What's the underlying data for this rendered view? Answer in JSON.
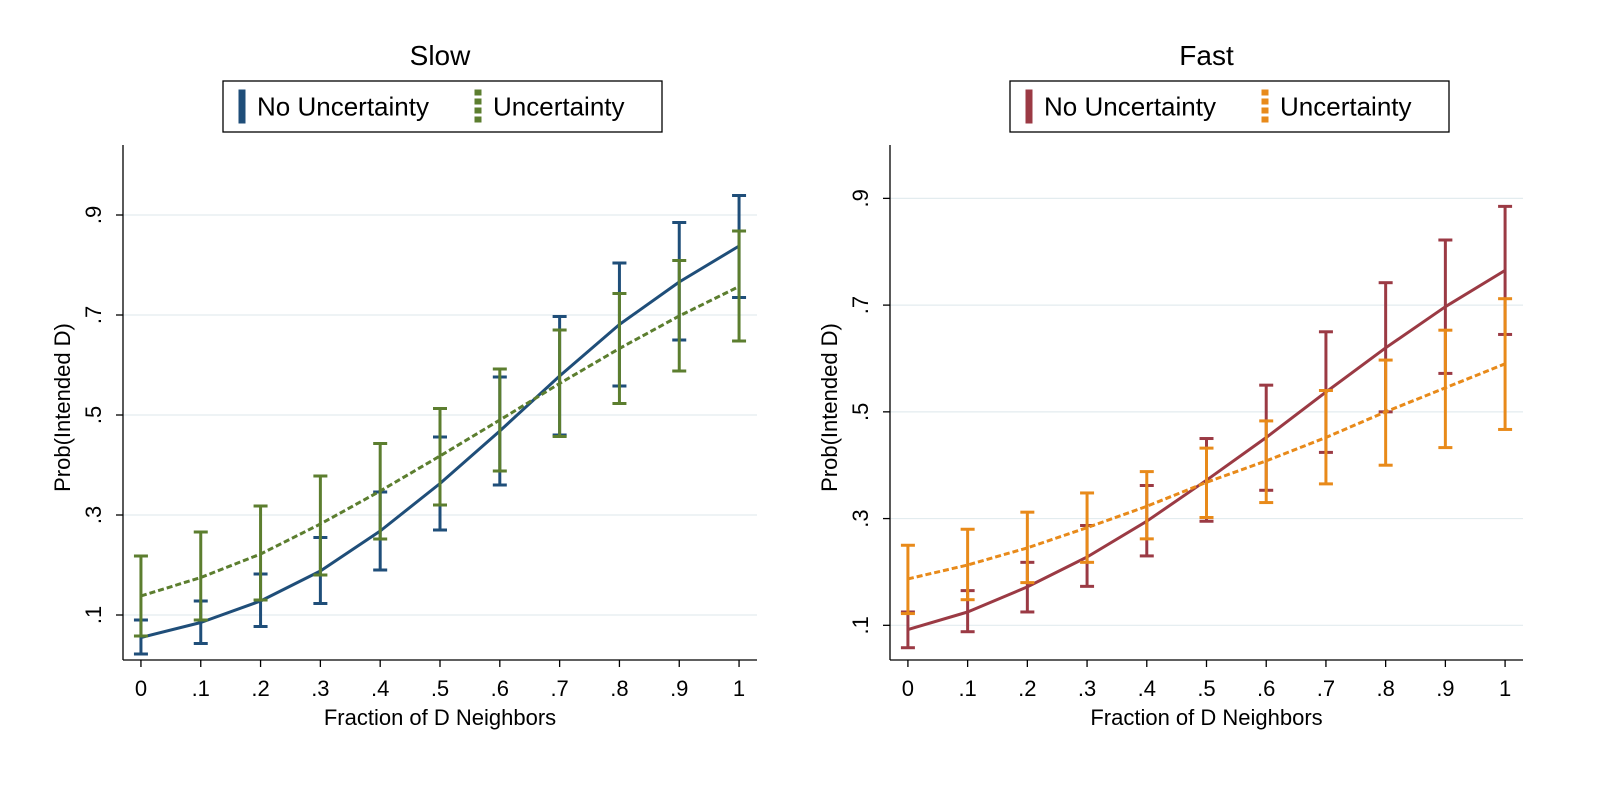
{
  "chart_data": [
    {
      "type": "line",
      "title": "Slow",
      "xlabel": "Fraction of D Neighbors",
      "ylabel": "Prob(Intended D)",
      "x": [
        0,
        0.1,
        0.2,
        0.3,
        0.4,
        0.5,
        0.6,
        0.7,
        0.8,
        0.9,
        1
      ],
      "x_tick_labels": [
        "0",
        ".1",
        ".2",
        ".3",
        ".4",
        ".5",
        ".6",
        ".7",
        ".8",
        ".9",
        "1"
      ],
      "y_ticks": [
        0.1,
        0.3,
        0.5,
        0.7,
        0.9
      ],
      "y_tick_labels": [
        ".1",
        ".3",
        ".5",
        ".7",
        ".9"
      ],
      "xlim": [
        -0.03,
        1.03
      ],
      "ylim": [
        0.01,
        1.04
      ],
      "grid": true,
      "legend_position": "top",
      "series": [
        {
          "name": "No Uncertainty",
          "color": "#1f4e79",
          "style": "solid",
          "values": [
            0.055,
            0.085,
            0.128,
            0.188,
            0.268,
            0.363,
            0.468,
            0.578,
            0.681,
            0.766,
            0.838
          ],
          "lower": [
            0.022,
            0.043,
            0.077,
            0.123,
            0.19,
            0.27,
            0.36,
            0.46,
            0.558,
            0.65,
            0.735
          ],
          "upper": [
            0.09,
            0.128,
            0.182,
            0.255,
            0.346,
            0.456,
            0.576,
            0.697,
            0.804,
            0.885,
            0.939
          ]
        },
        {
          "name": "Uncertainty",
          "color": "#5c7e2f",
          "style": "dashed",
          "values": [
            0.138,
            0.175,
            0.222,
            0.282,
            0.348,
            0.418,
            0.49,
            0.563,
            0.633,
            0.698,
            0.757
          ],
          "lower": [
            0.058,
            0.09,
            0.13,
            0.18,
            0.252,
            0.32,
            0.388,
            0.457,
            0.523,
            0.588,
            0.648
          ],
          "upper": [
            0.218,
            0.266,
            0.318,
            0.378,
            0.443,
            0.513,
            0.592,
            0.67,
            0.743,
            0.809,
            0.868
          ]
        }
      ]
    },
    {
      "type": "line",
      "title": "Fast",
      "xlabel": "Fraction of D Neighbors",
      "ylabel": "Prob(Intended D)",
      "x": [
        0,
        0.1,
        0.2,
        0.3,
        0.4,
        0.5,
        0.6,
        0.7,
        0.8,
        0.9,
        1
      ],
      "x_tick_labels": [
        "0",
        ".1",
        ".2",
        ".3",
        ".4",
        ".5",
        ".6",
        ".7",
        ".8",
        ".9",
        "1"
      ],
      "y_ticks": [
        0.1,
        0.3,
        0.5,
        0.7,
        0.9
      ],
      "y_tick_labels": [
        ".1",
        ".3",
        ".5",
        ".7",
        ".9"
      ],
      "xlim": [
        -0.03,
        1.03
      ],
      "ylim": [
        0.035,
        1.0
      ],
      "grid": true,
      "legend_position": "top",
      "series": [
        {
          "name": "No Uncertainty",
          "color": "#9b3a44",
          "style": "solid",
          "values": [
            0.092,
            0.125,
            0.172,
            0.228,
            0.295,
            0.372,
            0.452,
            0.537,
            0.62,
            0.697,
            0.765
          ],
          "lower": [
            0.058,
            0.088,
            0.125,
            0.173,
            0.23,
            0.295,
            0.353,
            0.424,
            0.5,
            0.572,
            0.645
          ],
          "upper": [
            0.125,
            0.165,
            0.218,
            0.287,
            0.362,
            0.45,
            0.55,
            0.65,
            0.742,
            0.822,
            0.885
          ]
        },
        {
          "name": "Uncertainty",
          "color": "#e88a1a",
          "style": "dashed",
          "values": [
            0.187,
            0.213,
            0.245,
            0.283,
            0.323,
            0.368,
            0.408,
            0.452,
            0.5,
            0.545,
            0.59
          ],
          "lower": [
            0.122,
            0.148,
            0.18,
            0.218,
            0.262,
            0.302,
            0.33,
            0.365,
            0.4,
            0.433,
            0.467
          ],
          "upper": [
            0.25,
            0.28,
            0.312,
            0.348,
            0.388,
            0.432,
            0.483,
            0.54,
            0.597,
            0.653,
            0.712
          ]
        }
      ]
    }
  ]
}
